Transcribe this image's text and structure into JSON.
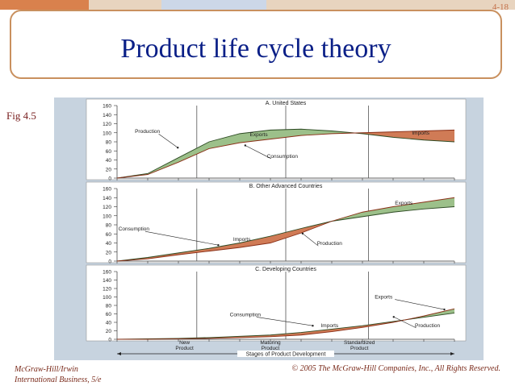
{
  "slide": {
    "number": "4-18",
    "title": "Product life cycle theory",
    "figure_label": "Fig 4.5",
    "footer_left_line1": "McGraw-Hill/Irwin",
    "footer_left_line2": "International Business, 5/e",
    "footer_right": "© 2005 The McGraw-Hill Companies, Inc., All Rights Reserved."
  },
  "colors": {
    "title": "#0a1f87",
    "border": "#c9905e",
    "band_green": "#9cc08a",
    "band_red": "#d07b56",
    "chart_bg": "#c7d3df",
    "panel_bg": "#ffffff",
    "top_bar": [
      "#d9814d",
      "#e8d4bf",
      "#ccd7e8",
      "#e8d4bf"
    ]
  },
  "chart_data": [
    {
      "type": "area",
      "title": "A. United States",
      "ylim": [
        0,
        160
      ],
      "yticks": [
        0,
        20,
        40,
        60,
        80,
        100,
        120,
        140,
        160
      ],
      "xlim": [
        0,
        11
      ],
      "x": [
        0,
        1,
        2,
        3,
        4,
        5,
        6,
        7,
        8,
        9,
        10,
        11
      ],
      "series": [
        {
          "name": "Production",
          "values": [
            0,
            10,
            45,
            80,
            98,
            106,
            108,
            104,
            98,
            90,
            84,
            80
          ]
        },
        {
          "name": "Consumption",
          "values": [
            0,
            8,
            35,
            65,
            78,
            86,
            94,
            98,
            100,
            102,
            104,
            106
          ]
        }
      ],
      "annotations": [
        "Production",
        "Exports",
        "Consumption",
        "Imports"
      ]
    },
    {
      "type": "area",
      "title": "B. Other Advanced Countries",
      "ylim": [
        0,
        160
      ],
      "yticks": [
        0,
        20,
        40,
        60,
        80,
        100,
        120,
        140,
        160
      ],
      "xlim": [
        0,
        11
      ],
      "x": [
        0,
        1,
        2,
        3,
        4,
        5,
        6,
        7,
        8,
        9,
        10,
        11
      ],
      "series": [
        {
          "name": "Consumption",
          "values": [
            0,
            8,
            18,
            28,
            40,
            55,
            72,
            88,
            98,
            108,
            115,
            120
          ]
        },
        {
          "name": "Production",
          "values": [
            0,
            5,
            14,
            22,
            30,
            40,
            62,
            88,
            108,
            120,
            130,
            140
          ]
        }
      ],
      "annotations": [
        "Consumption",
        "Imports",
        "Production",
        "Exports"
      ]
    },
    {
      "type": "area",
      "title": "C. Developing Countries",
      "ylim": [
        0,
        160
      ],
      "yticks": [
        0,
        20,
        40,
        60,
        80,
        100,
        120,
        140,
        160
      ],
      "xlim": [
        0,
        11
      ],
      "x": [
        0,
        1,
        2,
        3,
        4,
        5,
        6,
        7,
        8,
        9,
        10,
        11
      ],
      "series": [
        {
          "name": "Consumption",
          "values": [
            0,
            1,
            2,
            4,
            7,
            10,
            16,
            24,
            32,
            42,
            52,
            62
          ]
        },
        {
          "name": "Production",
          "values": [
            0,
            0,
            1,
            2,
            4,
            6,
            10,
            18,
            28,
            40,
            55,
            72
          ]
        }
      ],
      "annotations": [
        "Consumption",
        "Imports",
        "Exports",
        "Production"
      ]
    }
  ],
  "stages": {
    "label": "Stages of Product Development",
    "items": [
      "New Product",
      "Maturing Product",
      "Standardized Product"
    ]
  }
}
